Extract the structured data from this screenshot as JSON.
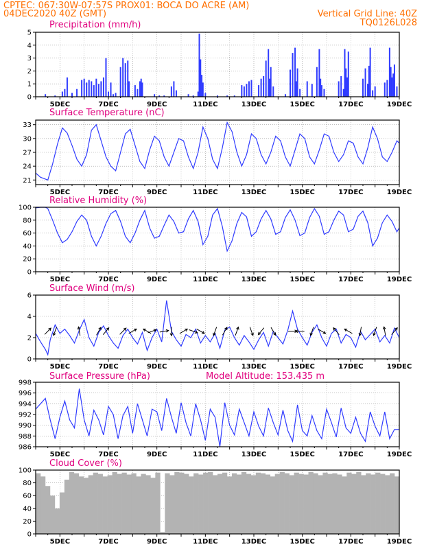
{
  "header": {
    "line1_left": "CPTEC:   067:30W-07:57S   PROX01: BOCA DO ACRE (AM)",
    "line2_left": "04DEC2020 40Z (GMT)",
    "line2_right": "Vertical Grid Line: 40Z",
    "line3_right": "TQ0126L028"
  },
  "colors": {
    "header": "#ff6f00",
    "title": "#e0007e",
    "series": "#2f3bff",
    "cloud": "#b3b3b3"
  },
  "x_axis": {
    "labels": [
      "5DEC",
      "7DEC",
      "9DEC",
      "11DEC",
      "13DEC",
      "15DEC",
      "17DEC",
      "19DEC"
    ],
    "day_start": 4.0,
    "day_end": 19.0
  },
  "chart_data": [
    {
      "type": "bar",
      "title": "Precipitation (mm/h)",
      "ylim": [
        0,
        5
      ],
      "yticks": [
        0,
        1,
        2,
        3,
        4,
        5
      ],
      "x": [
        4.4,
        4.8,
        5.1,
        5.2,
        5.3,
        5.5,
        5.7,
        5.9,
        6.0,
        6.1,
        6.2,
        6.3,
        6.4,
        6.5,
        6.6,
        6.7,
        6.8,
        6.9,
        7.0,
        7.1,
        7.2,
        7.3,
        7.5,
        7.6,
        7.7,
        7.8,
        7.85,
        8.1,
        8.2,
        8.3,
        8.35,
        8.4,
        8.9,
        9.1,
        9.3,
        9.6,
        9.7,
        9.8,
        10.3,
        10.5,
        10.7,
        10.75,
        10.8,
        10.85,
        10.9,
        11.0,
        11.5,
        11.9,
        12.2,
        12.5,
        12.6,
        12.7,
        12.8,
        12.9,
        13.2,
        13.3,
        13.4,
        13.5,
        13.6,
        13.65,
        13.7,
        13.8,
        14.3,
        14.5,
        14.6,
        14.7,
        14.75,
        14.8,
        14.9,
        15.2,
        15.4,
        15.6,
        15.7,
        15.75,
        15.8,
        15.9,
        16.5,
        16.6,
        16.7,
        16.75,
        16.8,
        16.85,
        16.9,
        17.5,
        17.6,
        17.7,
        17.75,
        17.8,
        17.9,
        18.0,
        18.4,
        18.5,
        18.6,
        18.65,
        18.7,
        18.75,
        18.8,
        18.9
      ],
      "values": [
        0.2,
        0.1,
        0.4,
        0.6,
        1.5,
        0.3,
        0.6,
        1.3,
        1.4,
        1.1,
        1.3,
        1.2,
        0.9,
        1.4,
        1.0,
        1.2,
        1.5,
        3.0,
        0.4,
        1.1,
        0.2,
        0.3,
        2.3,
        3.0,
        2.6,
        2.8,
        1.2,
        0.9,
        0.6,
        1.2,
        1.4,
        1.1,
        0.2,
        0.1,
        0.1,
        0.8,
        1.2,
        0.5,
        0.2,
        0.1,
        0.4,
        4.9,
        2.9,
        1.7,
        1.1,
        0.3,
        0.1,
        0.1,
        0.1,
        0.9,
        0.8,
        1.0,
        1.2,
        1.3,
        0.9,
        1.4,
        1.6,
        2.8,
        3.7,
        1.4,
        2.3,
        0.8,
        0.2,
        2.1,
        3.4,
        3.8,
        1.2,
        2.2,
        0.6,
        1.2,
        1.0,
        2.3,
        3.7,
        1.4,
        0.9,
        0.6,
        1.2,
        1.6,
        0.6,
        3.7,
        2.2,
        1.5,
        3.5,
        1.4,
        2.2,
        1.0,
        2.4,
        3.8,
        0.5,
        0.8,
        1.1,
        1.3,
        3.8,
        2.3,
        1.5,
        1.8,
        2.5,
        0.8
      ]
    },
    {
      "type": "line",
      "title": "Surface Temperature (nC)",
      "ylim": [
        20,
        34
      ],
      "yticks": [
        21,
        24,
        27,
        30,
        33
      ],
      "x": [
        4.0,
        4.2,
        4.4,
        4.5,
        4.7,
        4.9,
        5.1,
        5.3,
        5.5,
        5.7,
        5.9,
        6.1,
        6.3,
        6.5,
        6.7,
        6.9,
        7.1,
        7.3,
        7.5,
        7.7,
        7.9,
        8.1,
        8.3,
        8.5,
        8.7,
        8.9,
        9.1,
        9.3,
        9.5,
        9.7,
        9.9,
        10.1,
        10.3,
        10.5,
        10.7,
        10.9,
        11.1,
        11.3,
        11.5,
        11.7,
        11.9,
        12.1,
        12.3,
        12.5,
        12.7,
        12.9,
        13.1,
        13.3,
        13.5,
        13.7,
        13.9,
        14.1,
        14.3,
        14.5,
        14.7,
        14.9,
        15.1,
        15.3,
        15.5,
        15.7,
        15.9,
        16.1,
        16.3,
        16.5,
        16.7,
        16.9,
        17.1,
        17.3,
        17.5,
        17.7,
        17.9,
        18.1,
        18.3,
        18.5,
        18.7,
        18.9,
        19.0
      ],
      "values": [
        22.5,
        21.6,
        21.2,
        21.0,
        24.5,
        28.8,
        32.3,
        31.2,
        28.5,
        25.5,
        24.0,
        26.5,
        31.8,
        33.0,
        29.5,
        26.0,
        24.0,
        23.0,
        27.0,
        31.0,
        32.0,
        28.5,
        25.0,
        23.5,
        27.5,
        30.5,
        29.5,
        26.0,
        24.0,
        27.0,
        30.0,
        29.5,
        26.0,
        23.5,
        27.0,
        32.5,
        30.0,
        25.5,
        23.5,
        28.0,
        33.5,
        31.5,
        27.0,
        24.0,
        26.5,
        31.0,
        30.0,
        26.5,
        24.5,
        27.0,
        30.5,
        29.5,
        26.0,
        24.0,
        27.5,
        31.0,
        30.0,
        26.0,
        24.5,
        27.5,
        31.0,
        30.5,
        27.0,
        25.0,
        26.5,
        29.5,
        29.0,
        26.0,
        24.5,
        28.0,
        32.5,
        30.0,
        26.0,
        25.0,
        27.0,
        29.5,
        29.0
      ]
    },
    {
      "type": "line",
      "title": "Relative Humidity (%)",
      "ylim": [
        0,
        100
      ],
      "yticks": [
        0,
        20,
        40,
        60,
        80,
        100
      ],
      "x": [
        4.0,
        4.2,
        4.4,
        4.5,
        4.7,
        4.9,
        5.1,
        5.3,
        5.5,
        5.7,
        5.9,
        6.1,
        6.3,
        6.5,
        6.7,
        6.9,
        7.1,
        7.3,
        7.5,
        7.7,
        7.9,
        8.1,
        8.3,
        8.5,
        8.7,
        8.9,
        9.1,
        9.3,
        9.5,
        9.7,
        9.9,
        10.1,
        10.3,
        10.5,
        10.7,
        10.9,
        11.1,
        11.3,
        11.5,
        11.7,
        11.9,
        12.1,
        12.3,
        12.5,
        12.7,
        12.9,
        13.1,
        13.3,
        13.5,
        13.7,
        13.9,
        14.1,
        14.3,
        14.5,
        14.7,
        14.9,
        15.1,
        15.3,
        15.5,
        15.7,
        15.9,
        16.1,
        16.3,
        16.5,
        16.7,
        16.9,
        17.1,
        17.3,
        17.5,
        17.7,
        17.9,
        18.1,
        18.3,
        18.5,
        18.7,
        18.9,
        19.0
      ],
      "values": [
        99,
        100,
        100,
        98,
        80,
        60,
        45,
        50,
        62,
        78,
        88,
        80,
        55,
        40,
        55,
        75,
        90,
        95,
        78,
        55,
        45,
        60,
        80,
        95,
        68,
        52,
        55,
        72,
        88,
        78,
        60,
        62,
        82,
        95,
        78,
        42,
        55,
        88,
        98,
        70,
        32,
        48,
        75,
        92,
        85,
        55,
        62,
        82,
        95,
        82,
        58,
        62,
        84,
        96,
        80,
        56,
        60,
        84,
        98,
        86,
        58,
        62,
        80,
        94,
        88,
        62,
        66,
        86,
        94,
        76,
        40,
        52,
        76,
        88,
        78,
        62,
        68
      ]
    },
    {
      "type": "line",
      "title": "Surface Wind (m/s)",
      "ylim": [
        0,
        6
      ],
      "yticks": [
        0,
        2,
        4,
        6
      ],
      "x": [
        4.0,
        4.2,
        4.4,
        4.5,
        4.6,
        4.8,
        5.0,
        5.2,
        5.4,
        5.6,
        5.8,
        6.0,
        6.2,
        6.4,
        6.6,
        6.8,
        7.0,
        7.2,
        7.4,
        7.6,
        7.8,
        8.0,
        8.2,
        8.4,
        8.6,
        8.8,
        9.0,
        9.2,
        9.4,
        9.6,
        9.8,
        10.0,
        10.2,
        10.4,
        10.6,
        10.8,
        11.0,
        11.2,
        11.4,
        11.6,
        11.8,
        12.0,
        12.2,
        12.4,
        12.6,
        12.8,
        13.0,
        13.2,
        13.4,
        13.6,
        13.8,
        14.0,
        14.2,
        14.4,
        14.6,
        14.8,
        15.0,
        15.2,
        15.4,
        15.6,
        15.8,
        16.0,
        16.2,
        16.4,
        16.6,
        16.8,
        17.0,
        17.2,
        17.4,
        17.6,
        17.8,
        18.0,
        18.2,
        18.4,
        18.6,
        18.8,
        19.0
      ],
      "values": [
        2.4,
        1.6,
        0.9,
        0.4,
        1.8,
        3.2,
        2.4,
        2.8,
        2.2,
        1.5,
        2.7,
        3.7,
        2.0,
        1.2,
        2.5,
        3.1,
        2.2,
        1.5,
        1.0,
        2.2,
        2.8,
        2.0,
        1.4,
        2.5,
        0.8,
        2.0,
        2.8,
        1.6,
        5.5,
        2.6,
        1.8,
        1.2,
        2.3,
        2.0,
        2.8,
        1.5,
        2.2,
        1.6,
        2.4,
        1.0,
        2.7,
        3.0,
        2.0,
        1.3,
        2.2,
        1.6,
        0.9,
        1.8,
        2.5,
        1.2,
        2.6,
        2.0,
        1.4,
        2.7,
        4.5,
        2.8,
        2.0,
        1.3,
        2.5,
        3.2,
        2.0,
        1.2,
        2.4,
        2.8,
        1.5,
        2.3,
        2.0,
        1.1,
        2.6,
        1.8,
        2.3,
        2.8,
        1.6,
        2.2,
        1.5,
        2.9,
        2.0
      ],
      "arrows": [
        {
          "x": 4.5,
          "dir": 45
        },
        {
          "x": 4.8,
          "dir": 200
        },
        {
          "x": 5.8,
          "dir": 350
        },
        {
          "x": 6.6,
          "dir": 30
        },
        {
          "x": 6.9,
          "dir": 40
        },
        {
          "x": 7.6,
          "dir": 45
        },
        {
          "x": 8.0,
          "dir": 60
        },
        {
          "x": 8.6,
          "dir": 300
        },
        {
          "x": 8.8,
          "dir": 70
        },
        {
          "x": 9.3,
          "dir": 80
        },
        {
          "x": 9.6,
          "dir": 180
        },
        {
          "x": 10.1,
          "dir": 60
        },
        {
          "x": 10.5,
          "dir": 110
        },
        {
          "x": 10.8,
          "dir": 120
        },
        {
          "x": 11.4,
          "dir": 200
        },
        {
          "x": 11.8,
          "dir": 30
        },
        {
          "x": 12.3,
          "dir": 20
        },
        {
          "x": 12.9,
          "dir": 160
        },
        {
          "x": 13.3,
          "dir": 220
        },
        {
          "x": 13.8,
          "dir": 150
        },
        {
          "x": 14.6,
          "dir": 90
        },
        {
          "x": 14.9,
          "dir": 270
        },
        {
          "x": 15.4,
          "dir": 200
        },
        {
          "x": 15.8,
          "dir": 120
        },
        {
          "x": 16.4,
          "dir": 320
        },
        {
          "x": 16.9,
          "dir": 300
        },
        {
          "x": 17.4,
          "dir": 190
        },
        {
          "x": 18.0,
          "dir": 200
        },
        {
          "x": 18.4,
          "dir": 350
        },
        {
          "x": 18.8,
          "dir": 40
        }
      ]
    },
    {
      "type": "line",
      "title": "Surface Pressure (hPa)",
      "subtitle": "Model Altitude: 153.435 m",
      "ylim": [
        986,
        998
      ],
      "yticks": [
        986,
        988,
        990,
        992,
        994,
        996,
        998
      ],
      "x": [
        4.0,
        4.2,
        4.4,
        4.6,
        4.8,
        5.0,
        5.2,
        5.4,
        5.6,
        5.8,
        6.0,
        6.2,
        6.4,
        6.6,
        6.8,
        7.0,
        7.2,
        7.4,
        7.6,
        7.8,
        8.0,
        8.2,
        8.4,
        8.6,
        8.8,
        9.0,
        9.2,
        9.4,
        9.6,
        9.8,
        10.0,
        10.2,
        10.4,
        10.6,
        10.8,
        11.0,
        11.2,
        11.4,
        11.6,
        11.8,
        12.0,
        12.2,
        12.4,
        12.6,
        12.8,
        13.0,
        13.2,
        13.4,
        13.6,
        13.8,
        14.0,
        14.2,
        14.4,
        14.6,
        14.8,
        15.0,
        15.2,
        15.4,
        15.6,
        15.8,
        16.0,
        16.2,
        16.4,
        16.6,
        16.8,
        17.0,
        17.2,
        17.4,
        17.6,
        17.8,
        18.0,
        18.2,
        18.4,
        18.6,
        18.8,
        19.0
      ],
      "values": [
        993.0,
        994.0,
        995.0,
        991.0,
        987.5,
        991.5,
        994.5,
        991.0,
        989.5,
        996.8,
        991.0,
        988.0,
        992.8,
        991.0,
        988.2,
        993.5,
        992.0,
        987.5,
        991.8,
        993.5,
        988.5,
        994.0,
        991.0,
        988.0,
        993.0,
        992.5,
        989.0,
        995.0,
        991.5,
        988.5,
        994.2,
        990.5,
        988.0,
        994.0,
        991.0,
        987.2,
        993.0,
        991.5,
        986.0,
        994.2,
        990.0,
        988.2,
        993.0,
        990.5,
        988.0,
        992.5,
        989.8,
        988.0,
        993.2,
        990.5,
        988.2,
        992.8,
        989.0,
        987.0,
        993.8,
        989.0,
        988.0,
        991.8,
        989.0,
        987.5,
        993.0,
        990.5,
        987.8,
        993.2,
        989.5,
        988.5,
        991.5,
        988.5,
        987.0,
        992.5,
        989.8,
        988.0,
        992.5,
        987.5,
        989.2,
        989.2
      ]
    },
    {
      "type": "bar",
      "title": "Cloud Cover (%)",
      "ylim": [
        0,
        100
      ],
      "yticks": [
        0,
        20,
        40,
        60,
        80,
        100
      ],
      "x": [
        4.0,
        4.2,
        4.4,
        4.6,
        4.8,
        5.0,
        5.2,
        5.4,
        5.6,
        5.8,
        6.0,
        6.2,
        6.4,
        6.6,
        6.8,
        7.0,
        7.2,
        7.4,
        7.6,
        7.8,
        8.0,
        8.2,
        8.4,
        8.6,
        8.8,
        9.0,
        9.2,
        9.4,
        9.6,
        9.8,
        10.0,
        10.2,
        10.4,
        10.6,
        10.8,
        11.0,
        11.2,
        11.4,
        11.6,
        11.8,
        12.0,
        12.2,
        12.4,
        12.6,
        12.8,
        13.0,
        13.2,
        13.4,
        13.6,
        13.8,
        14.0,
        14.2,
        14.4,
        14.6,
        14.8,
        15.0,
        15.2,
        15.4,
        15.6,
        15.8,
        16.0,
        16.2,
        16.4,
        16.6,
        16.8,
        17.0,
        17.2,
        17.4,
        17.6,
        17.8,
        18.0,
        18.2,
        18.4,
        18.6,
        18.8,
        19.0
      ],
      "values": [
        95,
        90,
        75,
        60,
        40,
        65,
        85,
        97,
        95,
        90,
        88,
        92,
        96,
        94,
        90,
        92,
        97,
        94,
        96,
        93,
        95,
        90,
        94,
        92,
        88,
        96,
        3,
        95,
        92,
        97,
        96,
        94,
        90,
        95,
        93,
        96,
        97,
        92,
        94,
        96,
        90,
        95,
        93,
        97,
        94,
        92,
        96,
        95,
        93,
        90,
        94,
        97,
        95,
        92,
        96,
        94,
        93,
        97,
        95,
        92,
        96,
        94,
        95,
        93,
        90,
        96,
        94,
        97,
        92,
        95,
        93,
        96,
        94,
        92,
        95,
        90
      ]
    }
  ]
}
